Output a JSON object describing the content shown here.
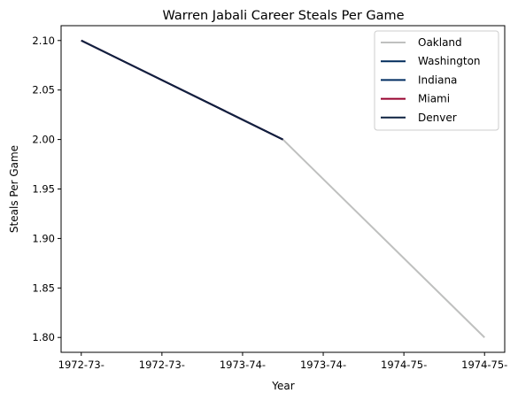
{
  "chart_data": {
    "type": "line",
    "title": "Warren Jabali Career Steals Per Game",
    "xlabel": "Year",
    "ylabel": "Steals Per Game",
    "x_tick_labels": [
      "1972-73-",
      "1972-73-",
      "1973-74-",
      "1973-74-",
      "1974-75-",
      "1974-75-"
    ],
    "xlim": [
      -0.1,
      2.1
    ],
    "ylim": [
      1.785,
      2.115
    ],
    "y_ticks": [
      1.8,
      1.85,
      1.9,
      1.95,
      2.0,
      2.05,
      2.1
    ],
    "y_tick_labels": [
      "1.80",
      "1.85",
      "1.90",
      "1.95",
      "2.00",
      "2.05",
      "2.10"
    ],
    "grid": false,
    "legend_position": "top-right",
    "series": [
      {
        "name": "Oakland",
        "color": "#bfc0bf",
        "points": [
          [
            1,
            2.0
          ],
          [
            2,
            1.8
          ]
        ]
      },
      {
        "name": "Washington",
        "color": "#002b5c",
        "points": [
          [
            0,
            2.1
          ],
          [
            1,
            2.0
          ]
        ]
      },
      {
        "name": "Indiana",
        "color": "#002d62",
        "points": [
          [
            0,
            2.1
          ],
          [
            1,
            2.0
          ]
        ]
      },
      {
        "name": "Miami",
        "color": "#98002e",
        "points": [
          [
            0,
            2.1
          ],
          [
            1,
            2.0
          ]
        ]
      },
      {
        "name": "Denver",
        "color": "#0e2240",
        "points": [
          [
            0,
            2.1
          ],
          [
            1,
            2.0
          ]
        ]
      }
    ]
  }
}
